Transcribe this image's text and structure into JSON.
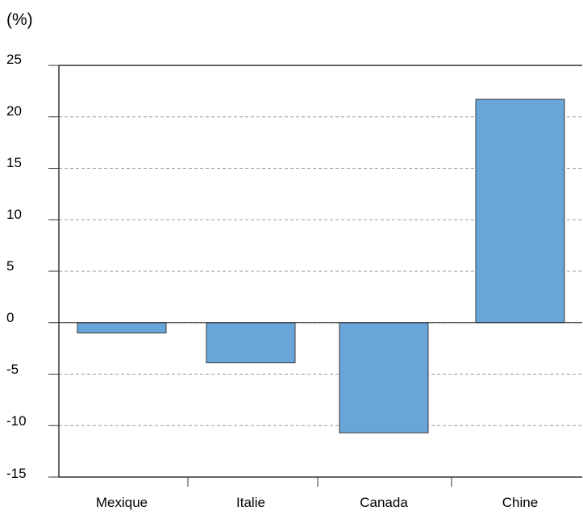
{
  "chart_data": {
    "type": "bar",
    "ylabel": "(%)",
    "categories": [
      "Mexique",
      "Italie",
      "Canada",
      "Chine"
    ],
    "values": [
      -1.0,
      -3.9,
      -10.7,
      21.7
    ],
    "ylim": [
      -15,
      25
    ],
    "yticks": [
      "25",
      "20",
      "15",
      "10",
      "5",
      "0",
      "-5",
      "-10",
      "-15"
    ],
    "grid": true,
    "colors": {
      "bar": "#6aa5d9",
      "bar_edge": "#3a3a3a",
      "grid": "#999999",
      "axis": "#333333"
    }
  }
}
